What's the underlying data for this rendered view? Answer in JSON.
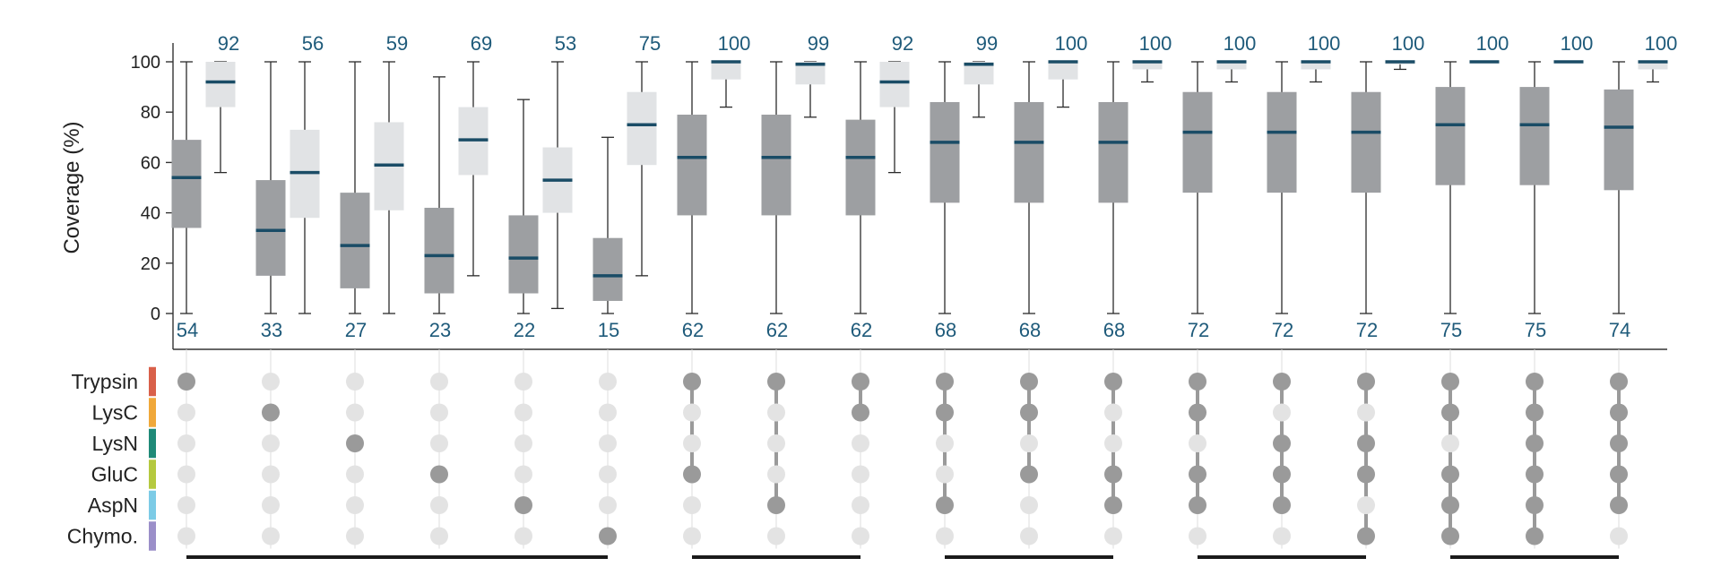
{
  "chart_data": {
    "type": "boxplot",
    "ylabel": "Coverage (%)",
    "ylim": [
      0,
      100
    ],
    "yticks": [
      0,
      20,
      40,
      60,
      80,
      100
    ],
    "enzymes": [
      {
        "name": "Trypsin",
        "color": "#d9604a"
      },
      {
        "name": "LysC",
        "color": "#f0a83a"
      },
      {
        "name": "LysN",
        "color": "#1f8a78"
      },
      {
        "name": "GluC",
        "color": "#b5c93f"
      },
      {
        "name": "AspN",
        "color": "#7ccbe6"
      },
      {
        "name": "Chymo.",
        "color": "#9b8fc9"
      }
    ],
    "colors": {
      "dark_box": "#9d9fa2",
      "light_box": "#e1e3e5",
      "median": "#1a4c66",
      "label": "#1e5a7a",
      "dot_active": "#9a9a9a",
      "dot_inactive": "#e3e3e3",
      "group_bar": "#1a1a1a"
    },
    "combinations": [
      {
        "enzymes": [
          "Trypsin"
        ],
        "dark": {
          "min": 0,
          "q1": 34,
          "median": 54,
          "q3": 69,
          "max": 100
        },
        "light": {
          "min": 56,
          "q1": 82,
          "median": 92,
          "q3": 100,
          "max": 100
        }
      },
      {
        "enzymes": [
          "LysC"
        ],
        "dark": {
          "min": 0,
          "q1": 15,
          "median": 33,
          "q3": 53,
          "max": 100
        },
        "light": {
          "min": 0,
          "q1": 38,
          "median": 56,
          "q3": 73,
          "max": 100
        }
      },
      {
        "enzymes": [
          "LysN"
        ],
        "dark": {
          "min": 0,
          "q1": 10,
          "median": 27,
          "q3": 48,
          "max": 100
        },
        "light": {
          "min": 0,
          "q1": 41,
          "median": 59,
          "q3": 76,
          "max": 100
        }
      },
      {
        "enzymes": [
          "GluC"
        ],
        "dark": {
          "min": 0,
          "q1": 8,
          "median": 23,
          "q3": 42,
          "max": 94
        },
        "light": {
          "min": 15,
          "q1": 55,
          "median": 69,
          "q3": 82,
          "max": 100
        }
      },
      {
        "enzymes": [
          "AspN"
        ],
        "dark": {
          "min": 0,
          "q1": 8,
          "median": 22,
          "q3": 39,
          "max": 85
        },
        "light": {
          "min": 2,
          "q1": 40,
          "median": 53,
          "q3": 66,
          "max": 100
        }
      },
      {
        "enzymes": [
          "Chymo."
        ],
        "dark": {
          "min": 0,
          "q1": 5,
          "median": 15,
          "q3": 30,
          "max": 70
        },
        "light": {
          "min": 15,
          "q1": 59,
          "median": 75,
          "q3": 88,
          "max": 100
        }
      },
      {
        "enzymes": [
          "Trypsin",
          "GluC"
        ],
        "dark": {
          "min": 0,
          "q1": 39,
          "median": 62,
          "q3": 79,
          "max": 100
        },
        "light": {
          "min": 82,
          "q1": 93,
          "median": 100,
          "q3": 100,
          "max": 100
        }
      },
      {
        "enzymes": [
          "Trypsin",
          "AspN"
        ],
        "dark": {
          "min": 0,
          "q1": 39,
          "median": 62,
          "q3": 79,
          "max": 100
        },
        "light": {
          "min": 78,
          "q1": 91,
          "median": 99,
          "q3": 100,
          "max": 100
        }
      },
      {
        "enzymes": [
          "Trypsin",
          "LysC"
        ],
        "dark": {
          "min": 0,
          "q1": 39,
          "median": 62,
          "q3": 77,
          "max": 100
        },
        "light": {
          "min": 56,
          "q1": 82,
          "median": 92,
          "q3": 100,
          "max": 100
        }
      },
      {
        "enzymes": [
          "Trypsin",
          "LysC",
          "AspN"
        ],
        "dark": {
          "min": 0,
          "q1": 44,
          "median": 68,
          "q3": 84,
          "max": 100
        },
        "light": {
          "min": 78,
          "q1": 91,
          "median": 99,
          "q3": 100,
          "max": 100
        }
      },
      {
        "enzymes": [
          "Trypsin",
          "LysC",
          "GluC"
        ],
        "dark": {
          "min": 0,
          "q1": 44,
          "median": 68,
          "q3": 84,
          "max": 100
        },
        "light": {
          "min": 82,
          "q1": 93,
          "median": 100,
          "q3": 100,
          "max": 100
        }
      },
      {
        "enzymes": [
          "Trypsin",
          "GluC",
          "AspN"
        ],
        "dark": {
          "min": 0,
          "q1": 44,
          "median": 68,
          "q3": 84,
          "max": 100
        },
        "light": {
          "min": 92,
          "q1": 97,
          "median": 100,
          "q3": 100,
          "max": 100
        }
      },
      {
        "enzymes": [
          "Trypsin",
          "LysC",
          "GluC",
          "AspN"
        ],
        "dark": {
          "min": 0,
          "q1": 48,
          "median": 72,
          "q3": 88,
          "max": 100
        },
        "light": {
          "min": 92,
          "q1": 97,
          "median": 100,
          "q3": 100,
          "max": 100
        }
      },
      {
        "enzymes": [
          "Trypsin",
          "LysN",
          "GluC",
          "AspN"
        ],
        "dark": {
          "min": 0,
          "q1": 48,
          "median": 72,
          "q3": 88,
          "max": 100
        },
        "light": {
          "min": 92,
          "q1": 97,
          "median": 100,
          "q3": 100,
          "max": 100
        }
      },
      {
        "enzymes": [
          "Trypsin",
          "LysN",
          "GluC",
          "Chymo."
        ],
        "dark": {
          "min": 0,
          "q1": 48,
          "median": 72,
          "q3": 88,
          "max": 100
        },
        "light": {
          "min": 97,
          "q1": 99,
          "median": 100,
          "q3": 100,
          "max": 100
        }
      },
      {
        "enzymes": [
          "Trypsin",
          "LysC",
          "GluC",
          "AspN",
          "Chymo."
        ],
        "dark": {
          "min": 0,
          "q1": 51,
          "median": 75,
          "q3": 90,
          "max": 100
        },
        "light": {
          "min": 100,
          "q1": 100,
          "median": 100,
          "q3": 100,
          "max": 100
        }
      },
      {
        "enzymes": [
          "Trypsin",
          "LysC",
          "LysN",
          "GluC",
          "AspN",
          "Chymo."
        ],
        "dark": {
          "min": 0,
          "q1": 51,
          "median": 75,
          "q3": 90,
          "max": 100
        },
        "light": {
          "min": 100,
          "q1": 100,
          "median": 100,
          "q3": 100,
          "max": 100
        }
      },
      {
        "enzymes": [
          "Trypsin",
          "LysC",
          "LysN",
          "GluC",
          "AspN"
        ],
        "dark": {
          "min": 0,
          "q1": 49,
          "median": 74,
          "q3": 89,
          "max": 100
        },
        "light": {
          "min": 92,
          "q1": 97,
          "median": 100,
          "q3": 100,
          "max": 100
        }
      }
    ],
    "groups": [
      {
        "start": 0,
        "end": 5
      },
      {
        "start": 6,
        "end": 8
      },
      {
        "start": 9,
        "end": 11
      },
      {
        "start": 12,
        "end": 14
      },
      {
        "start": 15,
        "end": 17
      }
    ]
  }
}
